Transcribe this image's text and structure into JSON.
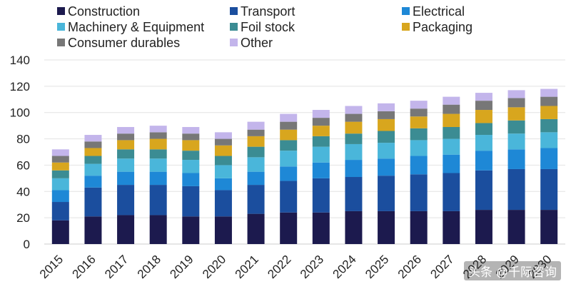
{
  "chart_data": {
    "type": "bar",
    "stacked": true,
    "categories": [
      "2015",
      "2016",
      "2017",
      "2018",
      "2019",
      "2020",
      "2021",
      "2022",
      "2023",
      "2024",
      "2025",
      "2026",
      "2027",
      "2028",
      "2029",
      "2030"
    ],
    "ylim": [
      0,
      140
    ],
    "yticks": [
      0,
      20,
      40,
      60,
      80,
      100,
      120,
      140
    ],
    "grid": true,
    "legend_position": "top",
    "series": [
      {
        "name": "Construction",
        "color": "#1c1a4e",
        "values": [
          18,
          21,
          22,
          22,
          21,
          21,
          23,
          24,
          24,
          25,
          25,
          25,
          25,
          26,
          26,
          26
        ]
      },
      {
        "name": "Transport",
        "color": "#1b4e9e",
        "values": [
          14,
          22,
          23,
          23,
          23,
          20,
          22,
          24,
          26,
          26,
          27,
          28,
          29,
          30,
          31,
          31
        ]
      },
      {
        "name": "Electrical",
        "color": "#1e88d6",
        "values": [
          9,
          9,
          10,
          10,
          10,
          9,
          10,
          11,
          12,
          13,
          13,
          14,
          14,
          15,
          15,
          16
        ]
      },
      {
        "name": "Machinery & Equipment",
        "color": "#4ab6da",
        "values": [
          9,
          9,
          10,
          10,
          10,
          10,
          11,
          12,
          12,
          12,
          12,
          12,
          12,
          12,
          12,
          12
        ]
      },
      {
        "name": "Foil stock",
        "color": "#3b8c93",
        "values": [
          6,
          6,
          7,
          7,
          7,
          7,
          8,
          8,
          8,
          8,
          9,
          9,
          9,
          9,
          10,
          10
        ]
      },
      {
        "name": "Packaging",
        "color": "#d8a61e",
        "values": [
          6,
          6,
          7,
          8,
          8,
          8,
          8,
          8,
          8,
          9,
          9,
          9,
          10,
          10,
          10,
          10
        ]
      },
      {
        "name": "Consumer durables",
        "color": "#777777",
        "values": [
          5,
          5,
          5,
          5,
          5,
          5,
          5,
          6,
          6,
          6,
          6,
          6,
          7,
          7,
          7,
          7
        ]
      },
      {
        "name": "Other",
        "color": "#c3b5eb",
        "values": [
          5,
          5,
          5,
          5,
          5,
          5,
          6,
          6,
          6,
          6,
          6,
          6,
          6,
          6,
          6,
          6
        ]
      }
    ]
  },
  "legend_rows": [
    [
      "Construction",
      "Transport",
      "Electrical"
    ],
    [
      "Machinery & Equipment",
      "Foil stock",
      "Packaging"
    ],
    [
      "Consumer durables",
      "Other"
    ]
  ],
  "watermark_text": "头条 @千际咨询"
}
